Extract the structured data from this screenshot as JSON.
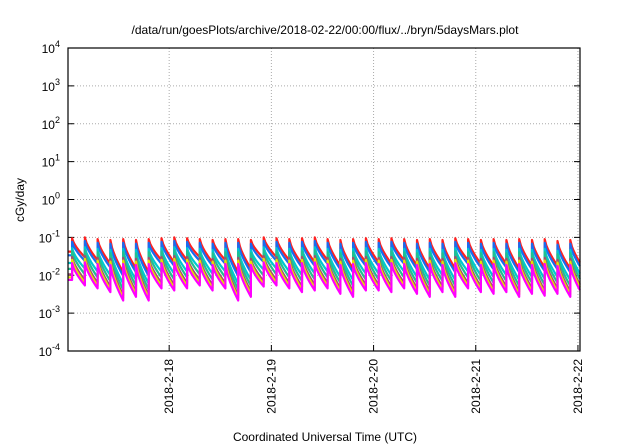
{
  "chart_data": {
    "type": "line",
    "title": "/data/run/goesPlots/archive/2018-02-22/00:00/flux/../bryn/5daysMars.plot",
    "xlabel": "Coordinated Universal Time (UTC)",
    "ylabel": "cGy/day",
    "yscale": "log",
    "ylim": [
      0.0001,
      10000
    ],
    "y_ticks": [
      {
        "base": "10",
        "exp": "4",
        "value": 10000
      },
      {
        "base": "10",
        "exp": "3",
        "value": 1000
      },
      {
        "base": "10",
        "exp": "2",
        "value": 100
      },
      {
        "base": "10",
        "exp": "1",
        "value": 10
      },
      {
        "base": "10",
        "exp": "0",
        "value": 1
      },
      {
        "base": "10",
        "exp": "-1",
        "value": 0.1
      },
      {
        "base": "10",
        "exp": "-2",
        "value": 0.01
      },
      {
        "base": "10",
        "exp": "-3",
        "value": 0.001
      },
      {
        "base": "10",
        "exp": "-4",
        "value": 0.0001
      }
    ],
    "x_units": "days since 2018-02-18 00:00 UTC",
    "xlim": [
      -0.99,
      4.02
    ],
    "x_ticks": [
      {
        "label": "2018-2-18",
        "value": 0
      },
      {
        "label": "2018-2-19",
        "value": 1
      },
      {
        "label": "2018-2-20",
        "value": 2
      },
      {
        "label": "2018-2-21",
        "value": 3
      },
      {
        "label": "2018-2-22",
        "value": 4
      }
    ],
    "grid": true,
    "cycle_period_days": 0.125,
    "first_peak_day": -0.95,
    "reference_cycles_red": [
      [
        0.095,
        0.03
      ],
      [
        0.1,
        0.025
      ],
      [
        0.09,
        0.02
      ],
      [
        0.085,
        0.012
      ],
      [
        0.09,
        0.015
      ],
      [
        0.085,
        0.012
      ],
      [
        0.09,
        0.025
      ],
      [
        0.095,
        0.022
      ],
      [
        0.1,
        0.025
      ],
      [
        0.095,
        0.03
      ],
      [
        0.09,
        0.022
      ],
      [
        0.085,
        0.025
      ],
      [
        0.09,
        0.012
      ],
      [
        0.09,
        0.015
      ],
      [
        0.085,
        0.028
      ],
      [
        0.1,
        0.03
      ],
      [
        0.095,
        0.025
      ],
      [
        0.09,
        0.02
      ],
      [
        0.095,
        0.022
      ],
      [
        0.1,
        0.025
      ],
      [
        0.09,
        0.018
      ],
      [
        0.085,
        0.015
      ],
      [
        0.09,
        0.022
      ],
      [
        0.095,
        0.022
      ],
      [
        0.09,
        0.02
      ],
      [
        0.095,
        0.025
      ],
      [
        0.09,
        0.018
      ],
      [
        0.085,
        0.015
      ],
      [
        0.09,
        0.02
      ],
      [
        0.085,
        0.015
      ],
      [
        0.095,
        0.025
      ],
      [
        0.09,
        0.02
      ],
      [
        0.085,
        0.018
      ],
      [
        0.09,
        0.02
      ],
      [
        0.085,
        0.015
      ],
      [
        0.09,
        0.018
      ],
      [
        0.085,
        0.016
      ],
      [
        0.09,
        0.018
      ],
      [
        0.08,
        0.015
      ],
      [
        0.085,
        0.016
      ]
    ],
    "series": [
      {
        "name": "red",
        "color": "#ff2020",
        "peak_factor": 1.0,
        "trough_factor": 1.0
      },
      {
        "name": "blue",
        "color": "#1a6cf0",
        "peak_factor": 0.8,
        "trough_factor": 0.8
      },
      {
        "name": "cyan",
        "color": "#00c8d0",
        "peak_factor": 0.55,
        "trough_factor": 0.5
      },
      {
        "name": "teal",
        "color": "#20c090",
        "peak_factor": 0.45,
        "trough_factor": 0.35
      },
      {
        "name": "brown",
        "color": "#a05070",
        "peak_factor": 0.32,
        "trough_factor": 0.25
      },
      {
        "name": "yellow",
        "color": "#e8e000",
        "peak_factor": 0.27,
        "trough_factor": 0.21
      },
      {
        "name": "magenta",
        "color": "#ff00ff",
        "peak_factor": 0.22,
        "trough_factor": 0.18
      }
    ]
  }
}
